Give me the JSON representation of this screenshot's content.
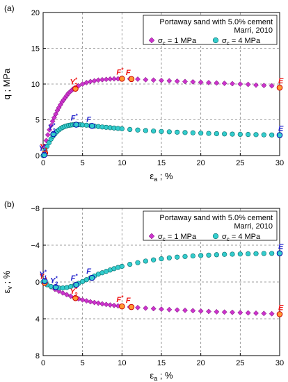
{
  "chart_data": [
    {
      "type": "scatter",
      "panel_label": "(a)",
      "ylabel": "q ; MPa",
      "xlabel_main": "ε",
      "xlabel_sub": "a",
      "xlabel_rest": " ; %",
      "xlim": [
        0,
        30
      ],
      "ylim": [
        0,
        20
      ],
      "x_ticks": [
        0,
        5,
        10,
        15,
        20,
        25,
        30
      ],
      "y_ticks": [
        0,
        5,
        10,
        15,
        20
      ],
      "y_tick_labels": [
        "0",
        "5",
        "10",
        "15",
        "20"
      ],
      "grid": true,
      "legend_position": "top-right",
      "legend_title_line1": "Portaway sand with 5.0% cement",
      "legend_title_line2": "Marri, 2010",
      "series": [
        {
          "name_sym": "σ",
          "name_sub": "c",
          "name_rest": " = 1 MPa",
          "marker": "diamond",
          "color": "#cc33cc",
          "stroke": "#660066",
          "x": [
            0,
            0.2,
            0.4,
            0.6,
            0.8,
            1,
            1.2,
            1.4,
            1.6,
            1.8,
            2,
            2.2,
            2.4,
            2.6,
            2.8,
            3,
            3.2,
            3.4,
            3.6,
            3.8,
            4,
            4.5,
            5,
            5.5,
            6,
            6.5,
            7,
            7.5,
            8,
            8.5,
            9,
            9.5,
            10,
            11,
            12,
            13,
            14,
            15,
            16,
            17,
            18,
            19,
            20,
            21,
            22,
            23,
            24,
            25,
            26,
            27,
            28,
            29,
            30
          ],
          "y": [
            0,
            1.2,
            2.1,
            2.9,
            3.6,
            4.2,
            4.8,
            5.3,
            5.8,
            6.3,
            6.7,
            7.1,
            7.5,
            7.8,
            8.1,
            8.4,
            8.7,
            8.9,
            9.1,
            9.3,
            9.45,
            9.75,
            10,
            10.2,
            10.35,
            10.45,
            10.55,
            10.6,
            10.65,
            10.7,
            10.72,
            10.73,
            10.75,
            10.72,
            10.68,
            10.6,
            10.55,
            10.5,
            10.45,
            10.4,
            10.35,
            10.3,
            10.25,
            10.2,
            10.15,
            10.1,
            10.05,
            10,
            9.95,
            9.85,
            9.8,
            9.75,
            9.5
          ]
        },
        {
          "name_sym": "σ",
          "name_sub": "c",
          "name_rest": " = 4 MPa",
          "marker": "circle",
          "color": "#33cccc",
          "stroke": "#006666",
          "x": [
            0,
            0.25,
            0.5,
            0.75,
            1,
            1.25,
            1.5,
            1.75,
            2,
            2.25,
            2.5,
            2.75,
            3,
            3.25,
            3.5,
            3.75,
            4,
            4.25,
            4.5,
            4.75,
            5,
            5.5,
            6,
            6.5,
            7,
            7.5,
            8,
            8.5,
            9,
            9.5,
            10,
            11,
            12,
            13,
            14,
            15,
            16,
            17,
            18,
            19,
            20,
            21,
            22,
            23,
            24,
            25,
            26,
            27,
            28,
            29,
            30
          ],
          "y": [
            0,
            0.7,
            1.3,
            1.8,
            2.3,
            2.7,
            3.05,
            3.35,
            3.6,
            3.8,
            3.95,
            4.07,
            4.15,
            4.22,
            4.27,
            4.3,
            4.32,
            4.32,
            4.31,
            4.3,
            4.28,
            4.24,
            4.18,
            4.12,
            4.06,
            4,
            3.95,
            3.9,
            3.85,
            3.8,
            3.75,
            3.65,
            3.57,
            3.5,
            3.43,
            3.37,
            3.32,
            3.27,
            3.22,
            3.18,
            3.14,
            3.1,
            3.06,
            3.03,
            3,
            2.97,
            2.95,
            2.93,
            2.9,
            2.88,
            2.86
          ]
        }
      ],
      "annotations": [
        {
          "main": "Y",
          "sub": "1",
          "sup": "",
          "x": 0.25,
          "y": 0.35,
          "color": "#ee1111",
          "marker": "circle-orange"
        },
        {
          "main": "Y",
          "sub": "2",
          "sup": "*",
          "x": 4.1,
          "y": 9.35,
          "color": "#ee1111",
          "marker": "circle-orange"
        },
        {
          "main": "F",
          "sub": "",
          "sup": "*",
          "x": 10,
          "y": 10.75,
          "color": "#ee1111",
          "marker": "circle-orange"
        },
        {
          "main": "F",
          "sub": "",
          "sup": "",
          "x": 11.2,
          "y": 10.7,
          "color": "#ee1111",
          "marker": "circle-orange"
        },
        {
          "main": "E",
          "sub": "",
          "sup": "",
          "x": 30,
          "y": 9.5,
          "color": "#ee1111",
          "marker": "circle-orange"
        },
        {
          "main": "Y",
          "sub": "1",
          "sup": "*",
          "x": 0.15,
          "y": 0.1,
          "color": "#2222cc",
          "marker": "circle-cyan"
        },
        {
          "main": "Y",
          "sub": "2",
          "sup": "*",
          "x": 1.3,
          "y": 3.0,
          "color": "#2222cc",
          "marker": "circle-cyan"
        },
        {
          "main": "F",
          "sub": "",
          "sup": "*",
          "x": 4.2,
          "y": 4.32,
          "color": "#2222cc",
          "marker": "circle-cyan"
        },
        {
          "main": "F",
          "sub": "",
          "sup": "",
          "x": 6.2,
          "y": 4.15,
          "color": "#2222cc",
          "marker": "circle-cyan"
        },
        {
          "main": "E",
          "sub": "",
          "sup": "",
          "x": 30,
          "y": 2.86,
          "color": "#2222cc",
          "marker": "circle-cyan"
        }
      ]
    },
    {
      "type": "scatter",
      "panel_label": "(b)",
      "ylabel_main": "ε",
      "ylabel_sub": "v",
      "ylabel_rest": " ; %",
      "xlabel_main": "ε",
      "xlabel_sub": "a",
      "xlabel_rest": " ; %",
      "xlim": [
        0,
        30
      ],
      "ylim": [
        -8,
        8
      ],
      "y_inverted": true,
      "x_ticks": [
        0,
        5,
        10,
        15,
        20,
        25,
        30
      ],
      "y_ticks": [
        -8,
        -4,
        0,
        4,
        8
      ],
      "y_tick_labels": [
        "−8",
        "−4",
        "0",
        "4",
        "8"
      ],
      "grid": true,
      "legend_position": "top-right",
      "legend_title_line1": "Portaway sand with 5.0% cement",
      "legend_title_line2": "Marri, 2010",
      "series": [
        {
          "name_sym": "σ",
          "name_sub": "c",
          "name_rest": " = 1 MPa",
          "marker": "diamond",
          "color": "#cc33cc",
          "stroke": "#660066",
          "x": [
            0,
            0.5,
            1,
            1.5,
            2,
            2.5,
            3,
            3.5,
            4,
            4.5,
            5,
            5.5,
            6,
            6.5,
            7,
            7.5,
            8,
            8.5,
            9,
            9.5,
            10,
            11,
            12,
            13,
            14,
            15,
            16,
            17,
            18,
            19,
            20,
            21,
            22,
            23,
            24,
            25,
            26,
            27,
            28,
            29,
            30
          ],
          "y": [
            0,
            0.3,
            0.55,
            0.8,
            1.0,
            1.2,
            1.38,
            1.55,
            1.7,
            1.83,
            1.95,
            2.05,
            2.15,
            2.23,
            2.3,
            2.38,
            2.44,
            2.5,
            2.55,
            2.6,
            2.65,
            2.72,
            2.78,
            2.84,
            2.9,
            2.95,
            3.0,
            3.04,
            3.08,
            3.12,
            3.16,
            3.2,
            3.24,
            3.27,
            3.3,
            3.33,
            3.36,
            3.39,
            3.42,
            3.45,
            3.5
          ]
        },
        {
          "name_sym": "σ",
          "name_sub": "c",
          "name_rest": " = 4 MPa",
          "marker": "circle",
          "color": "#33cccc",
          "stroke": "#006666",
          "x": [
            0,
            0.5,
            1,
            1.5,
            2,
            2.5,
            3,
            3.5,
            4,
            4.5,
            5,
            5.5,
            6,
            6.5,
            7,
            7.5,
            8,
            8.5,
            9,
            9.5,
            10,
            11,
            12,
            13,
            14,
            15,
            16,
            17,
            18,
            19,
            20,
            21,
            22,
            23,
            24,
            25,
            26,
            27,
            28,
            29,
            30
          ],
          "y": [
            0,
            0.3,
            0.5,
            0.6,
            0.65,
            0.65,
            0.6,
            0.5,
            0.35,
            0.15,
            -0.05,
            -0.25,
            -0.45,
            -0.65,
            -0.85,
            -1.0,
            -1.15,
            -1.3,
            -1.45,
            -1.58,
            -1.7,
            -1.92,
            -2.1,
            -2.27,
            -2.4,
            -2.52,
            -2.62,
            -2.7,
            -2.77,
            -2.83,
            -2.88,
            -2.92,
            -2.96,
            -3.0,
            -3.02,
            -3.04,
            -3.06,
            -3.08,
            -3.1,
            -3.11,
            -3.12
          ]
        }
      ],
      "annotations": [
        {
          "main": "Y",
          "sub": "1",
          "sup": "",
          "x": 0.2,
          "y": 0.1,
          "color": "#ee1111",
          "marker": "circle-orange"
        },
        {
          "main": "Y",
          "sub": "2",
          "sup": "*",
          "x": 4.1,
          "y": 1.75,
          "color": "#ee1111",
          "marker": "circle-orange"
        },
        {
          "main": "F",
          "sub": "",
          "sup": "*",
          "x": 10,
          "y": 2.65,
          "color": "#ee1111",
          "marker": "circle-orange"
        },
        {
          "main": "F",
          "sub": "",
          "sup": "",
          "x": 11.2,
          "y": 2.72,
          "color": "#ee1111",
          "marker": "circle-orange"
        },
        {
          "main": "E",
          "sub": "",
          "sup": "",
          "x": 30,
          "y": 3.5,
          "color": "#ee1111",
          "marker": "circle-orange"
        },
        {
          "main": "Y",
          "sub": "1",
          "sup": "*",
          "x": 0.2,
          "y": -0.1,
          "color": "#2222cc",
          "marker": "circle-cyan"
        },
        {
          "main": "Y",
          "sub": "2",
          "sup": "*",
          "x": 1.6,
          "y": 0.55,
          "color": "#2222cc",
          "marker": "circle-cyan"
        },
        {
          "main": "F",
          "sub": "",
          "sup": "*",
          "x": 4.2,
          "y": 0.3,
          "color": "#2222cc",
          "marker": "circle-cyan"
        },
        {
          "main": "F",
          "sub": "",
          "sup": "",
          "x": 6.2,
          "y": -0.45,
          "color": "#2222cc",
          "marker": "circle-cyan"
        },
        {
          "main": "E",
          "sub": "",
          "sup": "",
          "x": 30,
          "y": -3.12,
          "color": "#2222cc",
          "marker": "circle-cyan"
        }
      ]
    }
  ]
}
